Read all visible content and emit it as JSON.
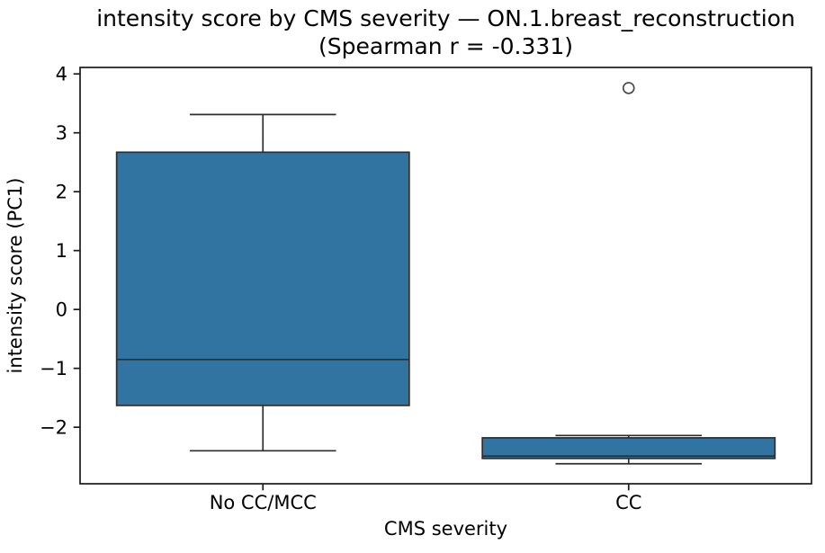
{
  "figure": {
    "title_line1": "intensity score by CMS severity — ON.1.breast_reconstruction",
    "title_line2": "(Spearman r = -0.331)",
    "background": "#ffffff"
  },
  "chart_data": {
    "type": "box",
    "title": "intensity score by CMS severity — ON.1.breast_reconstruction\n(Spearman r = -0.331)",
    "xlabel": "CMS severity",
    "ylabel": "intensity score (PC1)",
    "categories": [
      "No CC/MCC",
      "CC"
    ],
    "ylim": [
      -2.96,
      4.11
    ],
    "xlim": [
      -0.5,
      1.5
    ],
    "yticks": [
      4,
      3,
      2,
      1,
      0,
      -1,
      -2
    ],
    "ytick_labels": [
      "4",
      "3",
      "2",
      "1",
      "0",
      "−1",
      "−2"
    ],
    "grid": false,
    "legend": null,
    "box_width": 0.8,
    "cap_width_ratio": 0.5,
    "spearman_r": -0.331,
    "series": [
      {
        "category": "No CC/MCC",
        "whisker_low": -2.4,
        "q1": -1.63,
        "median": -0.85,
        "q3": 2.67,
        "whisker_high": 3.31,
        "outliers": []
      },
      {
        "category": "CC",
        "whisker_low": -2.62,
        "q1": -2.53,
        "median": -2.49,
        "q3": -2.18,
        "whisker_high": -2.14,
        "outliers": [
          3.76
        ]
      }
    ],
    "colors": {
      "box_fill": "#3274a1",
      "box_edge": "#2e2e2e",
      "whisker": "#2e2e2e",
      "median": "#2e2e2e",
      "outlier_edge": "#4a4a4a",
      "spine": "#1a1a1a",
      "text": "#000000"
    }
  }
}
